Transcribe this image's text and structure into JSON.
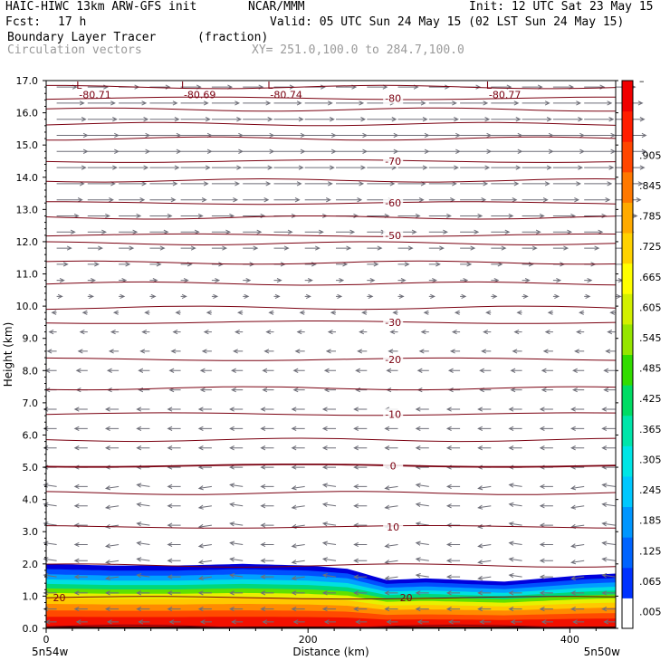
{
  "header": {
    "title": "HAIC-HIWC 13km ARW-GFS init",
    "org": "NCAR/MMM",
    "init": "Init: 12 UTC Sat 23 May 15",
    "fcst_label": "Fcst:",
    "fcst_value": "17 h",
    "valid": "Valid: 05 UTC Sun 24 May 15 (02 LST Sun 24 May 15)",
    "field": "Boundary Layer Tracer",
    "units": "(fraction)",
    "overlay": "Circulation vectors",
    "xy": "XY= 251.0,100.0 to 284.7,100.0"
  },
  "chart_data": {
    "type": "heatmap",
    "xlabel": "Distance (km)",
    "ylabel": "Height (km)",
    "xlim": [
      0,
      435
    ],
    "ylim": [
      0,
      17
    ],
    "x_ticks": [
      0,
      200,
      400
    ],
    "y_ticks": [
      "0.0",
      "1.0",
      "2.0",
      "3.0",
      "4.0",
      "5.0",
      "6.0",
      "7.0",
      "8.0",
      "9.0",
      "10.0",
      "11.0",
      "12.0",
      "13.0",
      "14.0",
      "15.0",
      "16.0",
      "17.0"
    ],
    "x_endpoints": [
      "5n54w",
      "5n50w"
    ],
    "colorbar": {
      "labels": [
        ".005",
        ".065",
        ".125",
        ".185",
        ".245",
        ".305",
        ".365",
        ".425",
        ".485",
        ".545",
        ".605",
        ".665",
        ".725",
        ".785",
        ".845",
        ".905",
        "–"
      ],
      "colors": [
        "#ffffff",
        "#0032ff",
        "#0064ff",
        "#0096ff",
        "#00c8ff",
        "#00e6e6",
        "#00e6aa",
        "#00dc64",
        "#32dc00",
        "#96e600",
        "#d2f000",
        "#ffff00",
        "#ffd200",
        "#ffaa00",
        "#ff7800",
        "#ff4600",
        "#ff1e00",
        "#f00000"
      ]
    },
    "tracer_top_km": {
      "x": [
        0,
        50,
        100,
        150,
        200,
        230,
        260,
        290,
        320,
        350,
        380,
        410,
        435
      ],
      "top": [
        2.0,
        1.95,
        1.95,
        2.0,
        1.95,
        1.85,
        1.5,
        1.55,
        1.5,
        1.45,
        1.55,
        1.65,
        1.7
      ]
    },
    "temperature_contours_C": [
      {
        "label": "20",
        "height_km": 0.95
      },
      {
        "label": "10",
        "height_km": 3.15
      },
      {
        "label": "0",
        "height_km": 5.05
      },
      {
        "label": "-10",
        "height_km": 6.65
      },
      {
        "label": "-20",
        "height_km": 8.35
      },
      {
        "label": "-30",
        "height_km": 9.5
      },
      {
        "label": "-50",
        "height_km": 12.2
      },
      {
        "label": "-60",
        "height_km": 13.2
      },
      {
        "label": "-70",
        "height_km": 14.5
      },
      {
        "label": "-80",
        "height_km": 16.45
      }
    ],
    "minima_labels": [
      {
        "label": "L",
        "value": "-80.71",
        "x_km": 32
      },
      {
        "label": "L",
        "value": "-80.69",
        "x_km": 112
      },
      {
        "label": "L",
        "value": "-80.74",
        "x_km": 178
      },
      {
        "label": "L",
        "value": "-80.77",
        "x_km": 345
      }
    ]
  }
}
